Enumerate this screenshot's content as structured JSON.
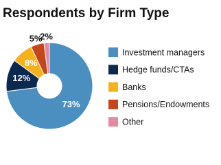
{
  "chart_data": {
    "type": "donut",
    "title": "Respondents by Firm Type",
    "categories": [
      "Investment managers",
      "Hedge funds/CTAs",
      "Banks",
      "Pensions/Endowments",
      "Other"
    ],
    "values": [
      73,
      12,
      8,
      5,
      2
    ],
    "value_labels": [
      "73%",
      "12%",
      "8%",
      "5%",
      "2%"
    ],
    "colors": [
      "#4a8fc0",
      "#0c2a50",
      "#f6b21a",
      "#c5461b",
      "#e28aa2"
    ],
    "legend": "right"
  }
}
